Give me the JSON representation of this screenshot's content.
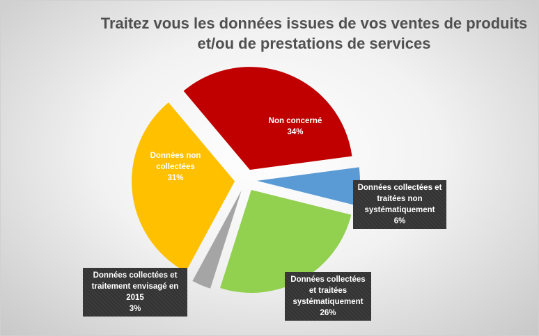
{
  "chart_data": {
    "type": "pie",
    "title": "Traitez vous les données issues de vos ventes de produits et/ou de  prestations de services",
    "categories": [
      "Non concerné",
      "Données collectées et traitées non systématiquement",
      "Données collectées et traitées systématiquement",
      "Données collectées et traitement envisagé en 2015",
      "Données non collectées"
    ],
    "values": [
      34,
      6,
      26,
      3,
      31
    ],
    "value_labels": [
      "34%",
      "6%",
      "26%",
      "3%",
      "31%"
    ],
    "colors": [
      "#c00000",
      "#5b9bd5",
      "#92d050",
      "#a5a5a5",
      "#ffc000"
    ]
  }
}
